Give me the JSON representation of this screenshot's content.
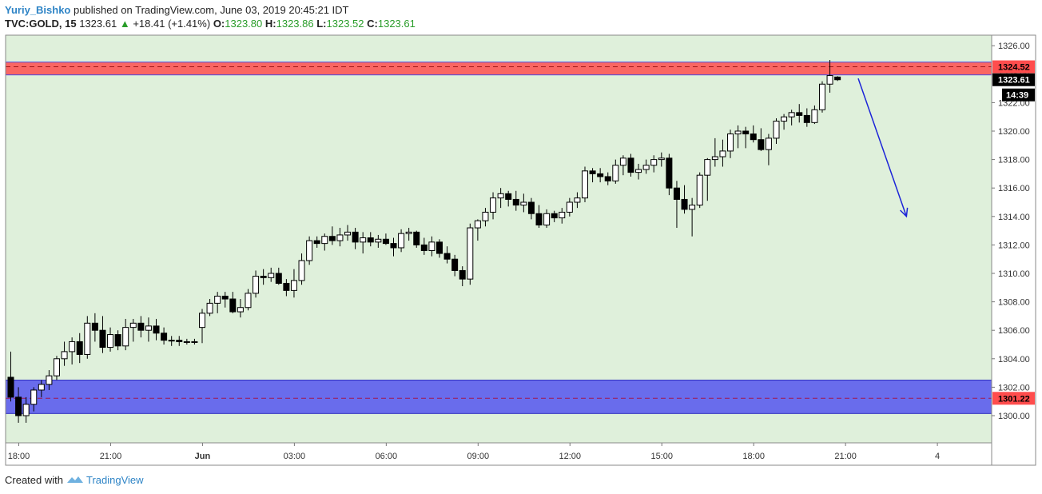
{
  "header": {
    "author": "Yuriy_Bishko",
    "published_text": "published on TradingView.com, June 03, 2019 20:45:21 IDT",
    "symbol": "TVC:GOLD, 15",
    "last": "1323.61",
    "change": "+18.41 (+1.41%)",
    "o_label": "O:",
    "o_value": "1323.80",
    "h_label": "H:",
    "h_value": "1323.86",
    "l_label": "L:",
    "l_value": "1323.52",
    "c_label": "C:",
    "c_value": "1323.61"
  },
  "footer": {
    "created_with": "Created with",
    "brand": "TradingView"
  },
  "chart_data": {
    "type": "candlestick",
    "background_color": "#dff0db",
    "ylim": [
      1298.0,
      1326.5
    ],
    "y_ticks": [
      1300,
      1302,
      1304,
      1306,
      1308,
      1310,
      1312,
      1314,
      1316,
      1318,
      1320,
      1322,
      1324,
      1326
    ],
    "y_tick_labels": [
      "1300.00",
      "1302.00",
      "1304.00",
      "1306.00",
      "1308.00",
      "1310.00",
      "1312.00",
      "1314.00",
      "1316.00",
      "1318.00",
      "1320.00",
      "1322.00",
      "1324.00",
      "1326.00"
    ],
    "x_tick_labels": [
      "18:00",
      "21:00",
      "Jun",
      "03:00",
      "06:00",
      "09:00",
      "12:00",
      "15:00",
      "18:00",
      "21:00",
      "4"
    ],
    "x_tick_bar_index": [
      0,
      12,
      24,
      36,
      48,
      60,
      72,
      84,
      96,
      108,
      120
    ],
    "candles": [
      [
        1302.7,
        1304.5,
        1301.0,
        1301.3
      ],
      [
        1301.3,
        1302.0,
        1299.5,
        1300.0
      ],
      [
        1300.0,
        1301.3,
        1299.5,
        1300.8
      ],
      [
        1300.8,
        1302.0,
        1300.3,
        1301.8
      ],
      [
        1301.8,
        1302.5,
        1301.3,
        1302.2
      ],
      [
        1302.2,
        1303.2,
        1301.8,
        1302.8
      ],
      [
        1302.8,
        1304.2,
        1302.5,
        1304.0
      ],
      [
        1304.0,
        1305.2,
        1303.5,
        1304.5
      ],
      [
        1304.5,
        1305.5,
        1303.6,
        1305.2
      ],
      [
        1305.2,
        1305.8,
        1303.7,
        1304.3
      ],
      [
        1304.3,
        1307.0,
        1304.0,
        1306.5
      ],
      [
        1306.5,
        1307.2,
        1305.2,
        1306.0
      ],
      [
        1306.0,
        1307.0,
        1304.4,
        1304.8
      ],
      [
        1304.8,
        1306.2,
        1304.5,
        1305.7
      ],
      [
        1305.7,
        1306.0,
        1304.6,
        1304.9
      ],
      [
        1304.9,
        1306.8,
        1304.6,
        1306.2
      ],
      [
        1306.2,
        1306.8,
        1305.2,
        1306.5
      ],
      [
        1306.5,
        1307.0,
        1305.5,
        1306.0
      ],
      [
        1306.0,
        1306.9,
        1305.2,
        1306.3
      ],
      [
        1306.3,
        1306.8,
        1305.3,
        1305.8
      ],
      [
        1305.8,
        1306.2,
        1305.0,
        1305.3
      ],
      [
        1305.3,
        1305.6,
        1304.9,
        1305.3
      ],
      [
        1305.3,
        1305.6,
        1304.9,
        1305.2
      ],
      [
        1305.2,
        1305.4,
        1305.0,
        1305.2
      ],
      [
        1305.2,
        1305.4,
        1305.0,
        1305.2
      ],
      [
        1306.2,
        1307.5,
        1305.1,
        1307.2
      ],
      [
        1307.2,
        1308.2,
        1307.0,
        1307.9
      ],
      [
        1307.9,
        1308.7,
        1307.2,
        1308.4
      ],
      [
        1308.4,
        1308.7,
        1307.6,
        1308.2
      ],
      [
        1308.2,
        1308.7,
        1307.2,
        1307.3
      ],
      [
        1307.3,
        1308.2,
        1306.9,
        1307.6
      ],
      [
        1307.6,
        1308.9,
        1307.4,
        1308.6
      ],
      [
        1308.6,
        1310.2,
        1308.3,
        1309.8
      ],
      [
        1309.8,
        1310.3,
        1309.2,
        1309.7
      ],
      [
        1309.7,
        1310.4,
        1309.4,
        1310.0
      ],
      [
        1310.0,
        1310.4,
        1309.2,
        1309.3
      ],
      [
        1309.3,
        1309.6,
        1308.4,
        1308.8
      ],
      [
        1308.8,
        1310.3,
        1308.3,
        1309.5
      ],
      [
        1309.5,
        1311.4,
        1309.2,
        1310.9
      ],
      [
        1310.9,
        1312.6,
        1310.6,
        1312.3
      ],
      [
        1312.3,
        1312.6,
        1311.8,
        1312.1
      ],
      [
        1312.1,
        1312.8,
        1311.6,
        1312.6
      ],
      [
        1312.6,
        1313.3,
        1312.0,
        1312.3
      ],
      [
        1312.3,
        1313.2,
        1311.9,
        1312.7
      ],
      [
        1312.7,
        1313.4,
        1312.3,
        1312.9
      ],
      [
        1312.9,
        1313.2,
        1311.7,
        1312.2
      ],
      [
        1312.2,
        1312.9,
        1311.4,
        1312.5
      ],
      [
        1312.5,
        1312.9,
        1311.9,
        1312.2
      ],
      [
        1312.2,
        1312.7,
        1311.8,
        1312.4
      ],
      [
        1312.4,
        1312.8,
        1312.0,
        1312.1
      ],
      [
        1312.1,
        1312.5,
        1311.2,
        1311.8
      ],
      [
        1311.8,
        1313.1,
        1311.5,
        1312.8
      ],
      [
        1312.8,
        1313.2,
        1312.3,
        1312.9
      ],
      [
        1312.9,
        1313.0,
        1311.8,
        1312.0
      ],
      [
        1312.0,
        1312.5,
        1311.3,
        1311.6
      ],
      [
        1311.6,
        1312.6,
        1311.2,
        1312.2
      ],
      [
        1312.2,
        1312.4,
        1311.1,
        1311.4
      ],
      [
        1311.4,
        1311.9,
        1310.7,
        1311.0
      ],
      [
        1311.0,
        1311.3,
        1309.8,
        1310.2
      ],
      [
        1310.2,
        1310.5,
        1309.1,
        1309.6
      ],
      [
        1309.6,
        1313.5,
        1309.2,
        1313.2
      ],
      [
        1313.2,
        1313.8,
        1312.3,
        1313.7
      ],
      [
        1313.7,
        1314.6,
        1313.3,
        1314.3
      ],
      [
        1314.3,
        1315.7,
        1313.8,
        1315.3
      ],
      [
        1315.3,
        1316.0,
        1314.6,
        1315.6
      ],
      [
        1315.6,
        1315.8,
        1314.7,
        1315.2
      ],
      [
        1315.2,
        1315.8,
        1314.4,
        1314.8
      ],
      [
        1314.8,
        1315.6,
        1314.3,
        1315.0
      ],
      [
        1315.0,
        1315.3,
        1313.8,
        1314.2
      ],
      [
        1314.2,
        1314.8,
        1313.2,
        1313.4
      ],
      [
        1313.4,
        1314.5,
        1313.2,
        1314.2
      ],
      [
        1314.2,
        1314.4,
        1313.6,
        1313.9
      ],
      [
        1313.9,
        1314.6,
        1313.5,
        1314.3
      ],
      [
        1314.3,
        1315.3,
        1314.0,
        1315.0
      ],
      [
        1315.0,
        1315.7,
        1314.6,
        1315.3
      ],
      [
        1315.3,
        1317.5,
        1315.0,
        1317.2
      ],
      [
        1317.2,
        1317.4,
        1316.4,
        1317.0
      ],
      [
        1317.0,
        1317.4,
        1316.4,
        1316.8
      ],
      [
        1316.8,
        1317.1,
        1316.2,
        1316.5
      ],
      [
        1316.5,
        1318.0,
        1316.3,
        1317.6
      ],
      [
        1317.6,
        1318.3,
        1316.9,
        1318.1
      ],
      [
        1318.1,
        1318.4,
        1316.8,
        1317.1
      ],
      [
        1317.1,
        1317.7,
        1316.6,
        1317.3
      ],
      [
        1317.3,
        1318.0,
        1317.0,
        1317.6
      ],
      [
        1317.6,
        1318.3,
        1317.1,
        1318.0
      ],
      [
        1318.0,
        1318.5,
        1317.5,
        1318.1
      ],
      [
        1318.1,
        1318.4,
        1315.5,
        1316.0
      ],
      [
        1316.0,
        1316.5,
        1313.2,
        1315.2
      ],
      [
        1315.2,
        1316.2,
        1314.2,
        1314.5
      ],
      [
        1314.5,
        1315.3,
        1312.6,
        1314.8
      ],
      [
        1314.8,
        1317.1,
        1314.6,
        1316.9
      ],
      [
        1316.9,
        1318.1,
        1315.1,
        1318.0
      ],
      [
        1318.0,
        1319.5,
        1317.5,
        1318.2
      ],
      [
        1318.2,
        1319.4,
        1317.5,
        1318.6
      ],
      [
        1318.6,
        1320.1,
        1318.1,
        1319.8
      ],
      [
        1319.8,
        1320.4,
        1318.8,
        1320.0
      ],
      [
        1320.0,
        1320.3,
        1318.8,
        1319.8
      ],
      [
        1319.8,
        1320.4,
        1319.2,
        1319.4
      ],
      [
        1319.4,
        1320.2,
        1318.6,
        1318.7
      ],
      [
        1318.7,
        1319.8,
        1317.6,
        1319.5
      ],
      [
        1319.5,
        1320.9,
        1319.1,
        1320.7
      ],
      [
        1320.7,
        1321.2,
        1320.1,
        1321.0
      ],
      [
        1321.0,
        1321.5,
        1320.4,
        1321.3
      ],
      [
        1321.3,
        1321.9,
        1320.6,
        1321.1
      ],
      [
        1321.1,
        1321.6,
        1320.3,
        1320.6
      ],
      [
        1320.6,
        1321.8,
        1320.5,
        1321.5
      ],
      [
        1321.5,
        1323.5,
        1321.3,
        1323.3
      ],
      [
        1323.3,
        1325.0,
        1322.7,
        1323.9
      ],
      [
        1323.8,
        1323.86,
        1323.52,
        1323.61
      ]
    ],
    "resistance_zone": {
      "from": 1323.95,
      "to": 1324.85,
      "line": 1324.52,
      "label": "1324.52",
      "color": "#ff4d4d"
    },
    "support_zone": {
      "from": 1300.15,
      "to": 1302.5,
      "line": 1301.22,
      "label": "1301.22",
      "color": "#5555ee"
    },
    "last_price_label": "1323.61",
    "countdown_label": "14:39",
    "annotation_arrow": {
      "from_bar": 110.7,
      "from_price": 1323.7,
      "to_bar": 117.0,
      "to_price": 1314.0,
      "color": "#1c24d8"
    }
  }
}
